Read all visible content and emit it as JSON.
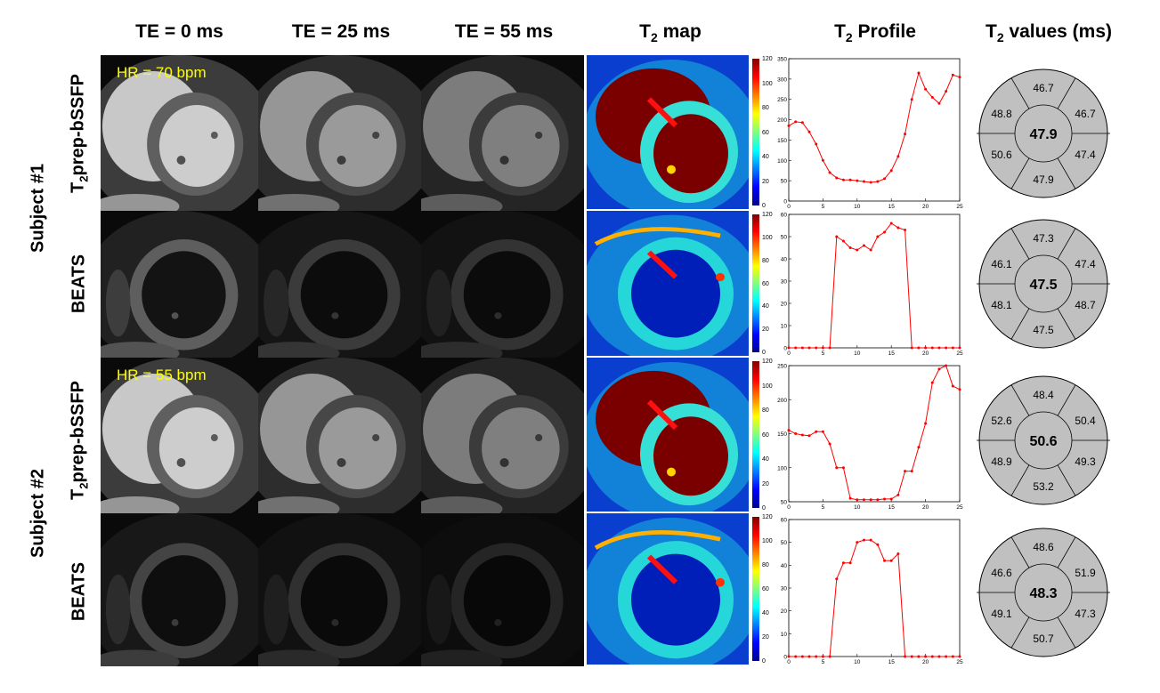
{
  "columns": {
    "te0": "TE = 0 ms",
    "te25": "TE = 25 ms",
    "te55": "TE = 55 ms",
    "t2map_prefix": "T",
    "t2map_sub": "2",
    "t2map_suffix": " map",
    "profile_prefix": "T",
    "profile_sub": "2",
    "profile_suffix": " Profile",
    "values_prefix": "T",
    "values_sub": "2",
    "values_suffix": " values (ms)"
  },
  "subjects": [
    {
      "label": "Subject #1"
    },
    {
      "label": "Subject #2"
    }
  ],
  "row_labels": {
    "t2prep_prefix": "T",
    "t2prep_sub": "2",
    "t2prep_suffix": "prep-bSSFP",
    "beats": "BEATS"
  },
  "hr_labels": [
    "HR = 70 bpm",
    "HR = 55 bpm"
  ],
  "colorbar": {
    "ticks": [
      "120",
      "100",
      "80",
      "60",
      "40",
      "20",
      "0"
    ],
    "colormap": "jet"
  },
  "chart_data": [
    {
      "type": "line",
      "color": "#ff0000",
      "x": [
        0,
        1,
        2,
        3,
        4,
        5,
        6,
        7,
        8,
        9,
        10,
        11,
        12,
        13,
        14,
        15,
        16,
        17,
        18,
        19,
        20,
        21,
        22,
        23,
        24,
        25
      ],
      "y": [
        185,
        195,
        193,
        170,
        140,
        100,
        70,
        57,
        52,
        52,
        50,
        48,
        46,
        48,
        55,
        75,
        110,
        165,
        250,
        315,
        275,
        255,
        240,
        270,
        310,
        305
      ],
      "xlim": [
        0,
        25
      ],
      "ylim": [
        0,
        350
      ],
      "xticks": [
        0,
        5,
        10,
        15,
        20,
        25
      ],
      "yticks": [
        0,
        50,
        100,
        150,
        200,
        250,
        300,
        350
      ]
    },
    {
      "type": "line",
      "color": "#ff0000",
      "x": [
        0,
        1,
        2,
        3,
        4,
        5,
        6,
        7,
        8,
        9,
        10,
        11,
        12,
        13,
        14,
        15,
        16,
        17,
        18,
        19,
        20,
        21,
        22,
        23,
        24,
        25
      ],
      "y": [
        0,
        0,
        0,
        0,
        0,
        0,
        0,
        50,
        48,
        45,
        44,
        46,
        44,
        50,
        52,
        56,
        54,
        53,
        0,
        0,
        0,
        0,
        0,
        0,
        0,
        0
      ],
      "xlim": [
        0,
        25
      ],
      "ylim": [
        0,
        60
      ],
      "xticks": [
        0,
        5,
        10,
        15,
        20,
        25
      ],
      "yticks": [
        0,
        10,
        20,
        30,
        40,
        50,
        60
      ]
    },
    {
      "type": "line",
      "color": "#ff0000",
      "x": [
        0,
        1,
        2,
        3,
        4,
        5,
        6,
        7,
        8,
        9,
        10,
        11,
        12,
        13,
        14,
        15,
        16,
        17,
        18,
        19,
        20,
        21,
        22,
        23,
        24,
        25
      ],
      "y": [
        155,
        150,
        148,
        147,
        153,
        153,
        135,
        100,
        100,
        55,
        53,
        53,
        53,
        53,
        54,
        54,
        60,
        95,
        95,
        130,
        165,
        225,
        245,
        250,
        220,
        215
      ],
      "xlim": [
        0,
        25
      ],
      "ylim": [
        50,
        250
      ],
      "xticks": [
        0,
        5,
        10,
        15,
        20,
        25
      ],
      "yticks": [
        50,
        100,
        150,
        200,
        250
      ]
    },
    {
      "type": "line",
      "color": "#ff0000",
      "x": [
        0,
        1,
        2,
        3,
        4,
        5,
        6,
        7,
        8,
        9,
        10,
        11,
        12,
        13,
        14,
        15,
        16,
        17,
        18,
        19,
        20,
        21,
        22,
        23,
        24,
        25
      ],
      "y": [
        0,
        0,
        0,
        0,
        0,
        0,
        0,
        34,
        41,
        41,
        50,
        51,
        51,
        49,
        42,
        42,
        45,
        0,
        0,
        0,
        0,
        0,
        0,
        0,
        0,
        0
      ],
      "xlim": [
        0,
        25
      ],
      "ylim": [
        0,
        60
      ],
      "xticks": [
        0,
        5,
        10,
        15,
        20,
        25
      ],
      "yticks": [
        0,
        10,
        20,
        30,
        40,
        50,
        60
      ]
    }
  ],
  "bullseyes": [
    {
      "center": "47.9",
      "top": "46.7",
      "upper_left": "48.8",
      "upper_right": "46.7",
      "lower_left": "50.6",
      "lower_right": "47.4",
      "bottom": "47.9"
    },
    {
      "center": "47.5",
      "top": "47.3",
      "upper_left": "46.1",
      "upper_right": "47.4",
      "lower_left": "48.1",
      "lower_right": "48.7",
      "bottom": "47.5"
    },
    {
      "center": "50.6",
      "top": "48.4",
      "upper_left": "52.6",
      "upper_right": "50.4",
      "lower_left": "48.9",
      "lower_right": "49.3",
      "bottom": "53.2"
    },
    {
      "center": "48.3",
      "top": "48.6",
      "upper_left": "46.6",
      "upper_right": "51.9",
      "lower_left": "49.1",
      "lower_right": "47.3",
      "bottom": "50.7"
    }
  ]
}
